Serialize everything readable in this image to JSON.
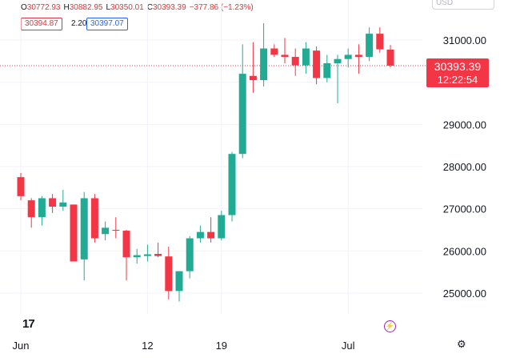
{
  "legend": {
    "open_key": "O",
    "open": "30772.93",
    "high_key": "H",
    "high": "30882.95",
    "low_key": "L",
    "low": "30350.01",
    "close_key": "C",
    "close": "30393.39",
    "change": "−377.86 (−1.23%)"
  },
  "quote": {
    "bid": "30394.87",
    "spread": "2.20",
    "ask": "30397.07"
  },
  "currency": "USD",
  "last_price": {
    "value": "30393.39",
    "countdown": "12:22:54",
    "color": "#f23645"
  },
  "logo_text": "17",
  "icons": {
    "bolt": "lightning-bolt-icon",
    "settings": "gear-icon"
  },
  "colors": {
    "up": "#22ab94",
    "down": "#f23645",
    "grid": "#f0f3fa",
    "text": "#131722"
  },
  "chart_data": {
    "type": "candlestick",
    "title": "",
    "xlabel": "",
    "ylabel": "",
    "ylim": [
      24650,
      31700
    ],
    "yticks": [
      25000,
      26000,
      27000,
      28000,
      29000,
      30000,
      31000
    ],
    "ytick_labels": [
      "25000.00",
      "26000.00",
      "27000.00",
      "28000.00",
      "29000.00",
      "",
      "31000.00"
    ],
    "xticks": [
      {
        "index": 0,
        "label": "Jun"
      },
      {
        "index": 12,
        "label": "12"
      },
      {
        "index": 19,
        "label": "19"
      },
      {
        "index": 31,
        "label": "Jul"
      }
    ],
    "grid": true,
    "candles": [
      {
        "o": 27750,
        "h": 27850,
        "l": 27200,
        "c": 27300
      },
      {
        "o": 27200,
        "h": 27250,
        "l": 26550,
        "c": 26800
      },
      {
        "o": 26800,
        "h": 27300,
        "l": 26600,
        "c": 27250
      },
      {
        "o": 27250,
        "h": 27350,
        "l": 26900,
        "c": 27050
      },
      {
        "o": 27050,
        "h": 27450,
        "l": 26950,
        "c": 27150
      },
      {
        "o": 27100,
        "h": 27100,
        "l": 25750,
        "c": 25750
      },
      {
        "o": 25800,
        "h": 27400,
        "l": 25300,
        "c": 27250
      },
      {
        "o": 27250,
        "h": 27350,
        "l": 26200,
        "c": 26300
      },
      {
        "o": 26400,
        "h": 26700,
        "l": 26250,
        "c": 26550
      },
      {
        "o": 26500,
        "h": 26800,
        "l": 26300,
        "c": 26480
      },
      {
        "o": 26480,
        "h": 26500,
        "l": 25300,
        "c": 25850
      },
      {
        "o": 25850,
        "h": 26050,
        "l": 25700,
        "c": 25900
      },
      {
        "o": 25880,
        "h": 26150,
        "l": 25750,
        "c": 25920
      },
      {
        "o": 25930,
        "h": 26200,
        "l": 25850,
        "c": 25880
      },
      {
        "o": 25870,
        "h": 26100,
        "l": 24850,
        "c": 25050
      },
      {
        "o": 25050,
        "h": 25520,
        "l": 24800,
        "c": 25520
      },
      {
        "o": 25520,
        "h": 26350,
        "l": 25350,
        "c": 26300
      },
      {
        "o": 26300,
        "h": 26600,
        "l": 26200,
        "c": 26450
      },
      {
        "o": 26450,
        "h": 26800,
        "l": 26200,
        "c": 26300
      },
      {
        "o": 26300,
        "h": 26950,
        "l": 26250,
        "c": 26850
      },
      {
        "o": 26850,
        "h": 28350,
        "l": 26700,
        "c": 28300
      },
      {
        "o": 28300,
        "h": 30900,
        "l": 28200,
        "c": 30200
      },
      {
        "o": 30150,
        "h": 30950,
        "l": 29750,
        "c": 30050
      },
      {
        "o": 30050,
        "h": 31400,
        "l": 29900,
        "c": 30800
      },
      {
        "o": 30800,
        "h": 30900,
        "l": 30600,
        "c": 30650
      },
      {
        "o": 30650,
        "h": 31050,
        "l": 30450,
        "c": 30600
      },
      {
        "o": 30600,
        "h": 30800,
        "l": 30150,
        "c": 30400
      },
      {
        "o": 30400,
        "h": 30950,
        "l": 30200,
        "c": 30800
      },
      {
        "o": 30750,
        "h": 30850,
        "l": 29950,
        "c": 30100
      },
      {
        "o": 30100,
        "h": 30650,
        "l": 30000,
        "c": 30450
      },
      {
        "o": 30450,
        "h": 30650,
        "l": 29500,
        "c": 30550
      },
      {
        "o": 30550,
        "h": 30800,
        "l": 30350,
        "c": 30650
      },
      {
        "o": 30650,
        "h": 30900,
        "l": 30200,
        "c": 30600
      },
      {
        "o": 30600,
        "h": 31300,
        "l": 30500,
        "c": 31150
      },
      {
        "o": 31150,
        "h": 31300,
        "l": 30700,
        "c": 30780
      },
      {
        "o": 30772.93,
        "h": 30882.95,
        "l": 30350.01,
        "c": 30393.39
      }
    ]
  }
}
